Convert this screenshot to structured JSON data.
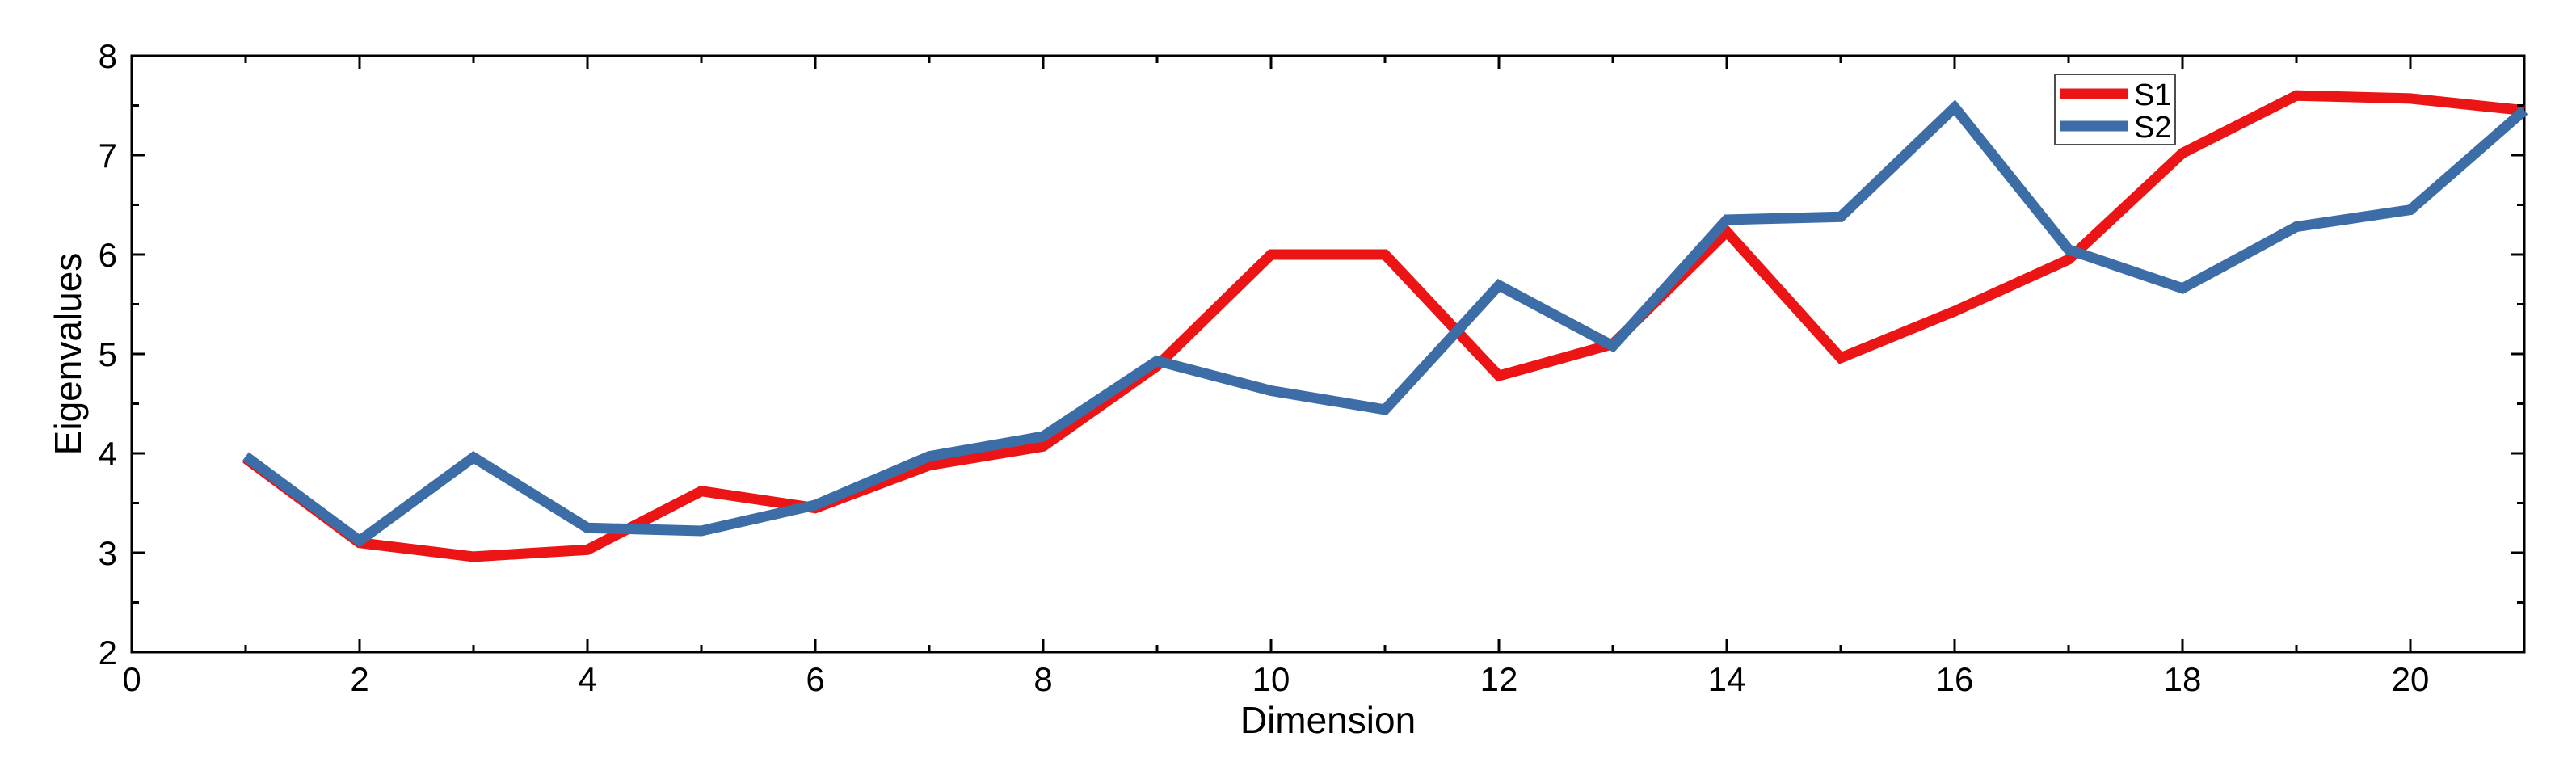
{
  "chart_data": {
    "type": "line",
    "x": [
      1,
      2,
      3,
      4,
      5,
      6,
      7,
      8,
      9,
      10,
      11,
      12,
      13,
      14,
      15,
      16,
      17,
      18,
      19,
      20,
      21
    ],
    "series": [
      {
        "name": "S1",
        "color": "#ec1515",
        "values": [
          3.95,
          3.1,
          2.96,
          3.03,
          3.62,
          3.45,
          3.88,
          4.07,
          4.88,
          6.0,
          6.0,
          4.78,
          5.1,
          6.23,
          4.96,
          5.43,
          5.95,
          7.02,
          7.6,
          7.57,
          7.45
        ]
      },
      {
        "name": "S2",
        "color": "#3c6da6",
        "values": [
          3.97,
          3.12,
          3.96,
          3.25,
          3.22,
          3.48,
          3.97,
          4.17,
          4.93,
          4.63,
          4.44,
          5.69,
          5.08,
          6.35,
          6.38,
          7.48,
          6.05,
          5.66,
          6.28,
          6.45,
          7.45
        ]
      }
    ],
    "title": "",
    "xlabel": "Dimension",
    "ylabel": "Eigenvalues",
    "xlim": [
      0,
      21
    ],
    "ylim": [
      2,
      8
    ],
    "x_major_ticks": [
      0,
      2,
      4,
      6,
      8,
      10,
      12,
      14,
      16,
      18,
      20
    ],
    "x_minor_ticks": [
      1,
      3,
      5,
      7,
      9,
      11,
      13,
      15,
      17,
      19,
      21
    ],
    "y_major_ticks": [
      2,
      3,
      4,
      5,
      6,
      7,
      8
    ],
    "y_minor_ticks": [
      2.5,
      3.5,
      4.5,
      5.5,
      6.5,
      7.5
    ],
    "grid": false,
    "legend_position": "top-right",
    "legend_entries": [
      "S1",
      "S2"
    ],
    "frame_color": "#000000",
    "background_color": "#ffffff",
    "legend_border_color": "#4d4d4d"
  }
}
